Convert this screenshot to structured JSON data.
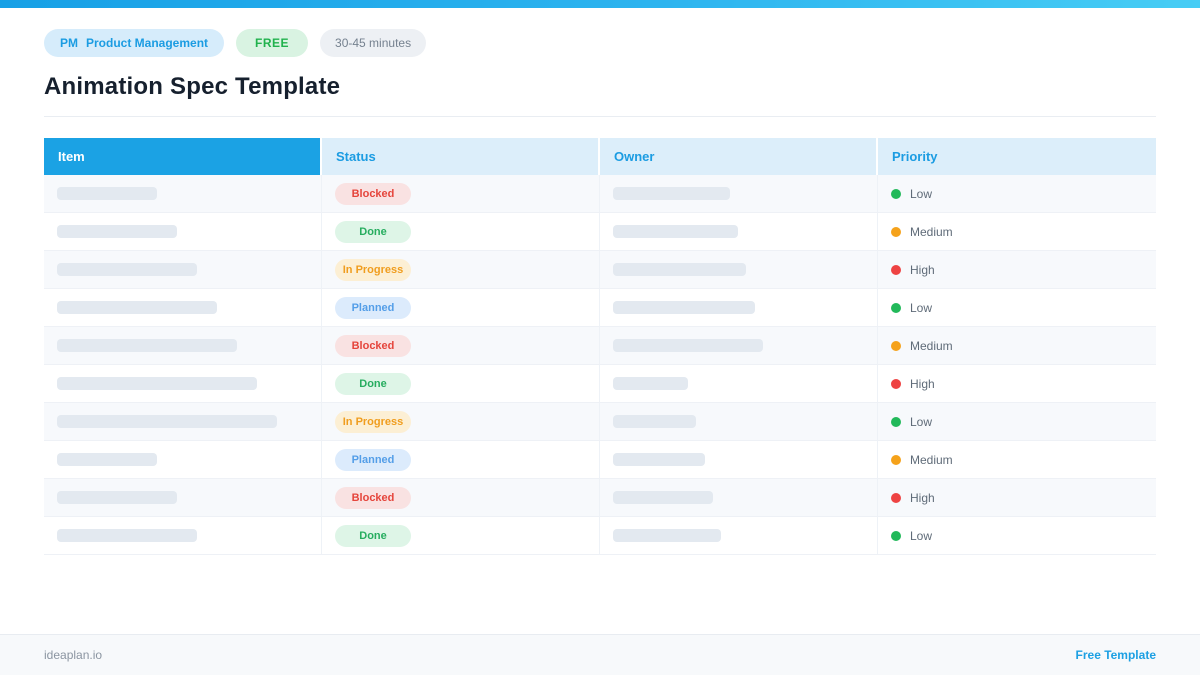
{
  "colors": {
    "accent_blue": "#1ba2e4",
    "topbar_gradient_start": "#17a0e6",
    "topbar_gradient_end": "#47cdf5",
    "header_light_blue": "#dceefa",
    "row_alt": "#f7f9fc",
    "placeholder_bar": "#e3e9f0"
  },
  "header": {
    "badges": {
      "category": {
        "abbr": "PM",
        "label": "Product Management",
        "bg": "#d6ecfb",
        "color": "#1b9ce2"
      },
      "free": {
        "label": "FREE",
        "bg": "#d9f3e2",
        "color": "#21b24d"
      },
      "duration": {
        "label": "30-45 minutes",
        "bg": "#edf0f4",
        "color": "#75818f"
      }
    },
    "title": "Animation Spec Template"
  },
  "table": {
    "columns": [
      {
        "label": "Item"
      },
      {
        "label": "Status"
      },
      {
        "label": "Owner"
      },
      {
        "label": "Priority"
      }
    ],
    "status_styles": {
      "Blocked": {
        "bg": "#f9e2e2",
        "color": "#e5453c"
      },
      "Done": {
        "bg": "#def5e7",
        "color": "#27ad5f"
      },
      "In Progress": {
        "bg": "#fcefd4",
        "color": "#f09d1e"
      },
      "Planned": {
        "bg": "#dcebfc",
        "color": "#549ee8"
      }
    },
    "priority_colors": {
      "Low": "#22b95a",
      "Medium": "#f5a21b",
      "High": "#ee4343"
    },
    "rows": [
      {
        "item_bar_width": 100,
        "status": "Blocked",
        "owner_bar_width": 117,
        "priority": "Low"
      },
      {
        "item_bar_width": 120,
        "status": "Done",
        "owner_bar_width": 125,
        "priority": "Medium"
      },
      {
        "item_bar_width": 140,
        "status": "In Progress",
        "owner_bar_width": 133,
        "priority": "High"
      },
      {
        "item_bar_width": 160,
        "status": "Planned",
        "owner_bar_width": 142,
        "priority": "Low"
      },
      {
        "item_bar_width": 180,
        "status": "Blocked",
        "owner_bar_width": 150,
        "priority": "Medium"
      },
      {
        "item_bar_width": 200,
        "status": "Done",
        "owner_bar_width": 75,
        "priority": "High"
      },
      {
        "item_bar_width": 220,
        "status": "In Progress",
        "owner_bar_width": 83,
        "priority": "Low"
      },
      {
        "item_bar_width": 100,
        "status": "Planned",
        "owner_bar_width": 92,
        "priority": "Medium"
      },
      {
        "item_bar_width": 120,
        "status": "Blocked",
        "owner_bar_width": 100,
        "priority": "High"
      },
      {
        "item_bar_width": 140,
        "status": "Done",
        "owner_bar_width": 108,
        "priority": "Low"
      }
    ]
  },
  "footer": {
    "site": "ideaplan.io",
    "link": "Free Template"
  }
}
